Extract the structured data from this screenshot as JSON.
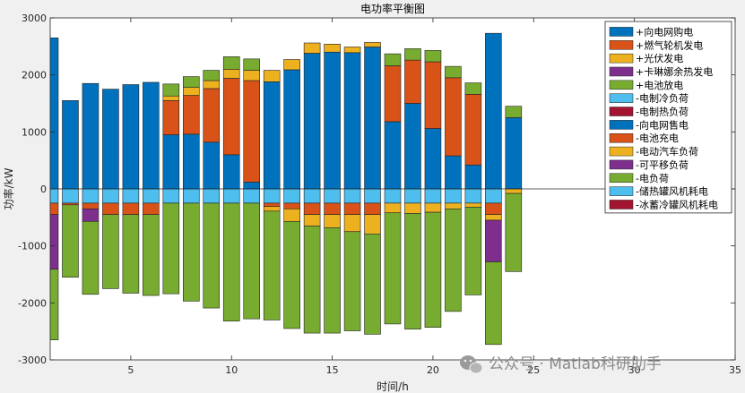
{
  "chart_data": {
    "type": "bar",
    "title": "电功率平衡图",
    "xlabel": "时间/h",
    "ylabel": "功率/kW",
    "xlim": [
      1,
      35
    ],
    "ylim": [
      -3000,
      3000
    ],
    "xticks": [
      5,
      10,
      15,
      20,
      25,
      30,
      35
    ],
    "yticks": [
      -3000,
      -2000,
      -1000,
      0,
      1000,
      2000,
      3000
    ],
    "grid": false,
    "stacked": true,
    "legend_position": "top-right",
    "x": [
      1,
      2,
      3,
      4,
      5,
      6,
      7,
      8,
      9,
      10,
      11,
      12,
      13,
      14,
      15,
      16,
      17,
      18,
      19,
      20,
      21,
      22,
      23,
      24
    ],
    "series": [
      {
        "name": "+向电网购电",
        "color": "#0072bd",
        "values": [
          2650,
          1550,
          1850,
          1750,
          1830,
          1870,
          950,
          960,
          820,
          600,
          120,
          1880,
          2090,
          2380,
          2400,
          2390,
          2490,
          1180,
          1500,
          1060,
          580,
          420,
          2730,
          1250
        ]
      },
      {
        "name": "+燃气轮机发电",
        "color": "#d95319",
        "values": [
          0,
          0,
          0,
          0,
          0,
          0,
          600,
          680,
          940,
          1340,
          1780,
          0,
          0,
          0,
          0,
          0,
          0,
          980,
          760,
          1170,
          1370,
          1240,
          0,
          0
        ]
      },
      {
        "name": "+光伏发电",
        "color": "#edb120",
        "values": [
          0,
          0,
          0,
          0,
          0,
          0,
          80,
          140,
          140,
          160,
          180,
          200,
          180,
          180,
          140,
          100,
          80,
          0,
          0,
          0,
          0,
          0,
          0,
          0
        ]
      },
      {
        "name": "+卡琳娜余热发电",
        "color": "#7e2f8e",
        "values": [
          0,
          0,
          0,
          0,
          0,
          0,
          0,
          0,
          0,
          0,
          0,
          0,
          0,
          0,
          0,
          0,
          0,
          0,
          0,
          0,
          0,
          0,
          0,
          0
        ]
      },
      {
        "name": "+电池放电",
        "color": "#77ac30",
        "values": [
          0,
          0,
          0,
          0,
          0,
          0,
          210,
          190,
          180,
          220,
          200,
          0,
          0,
          0,
          0,
          0,
          0,
          210,
          200,
          200,
          200,
          200,
          0,
          200
        ]
      },
      {
        "name": "-电制冷负荷",
        "color": "#4dbeee",
        "values": [
          -250,
          -250,
          -250,
          -250,
          -250,
          -250,
          -250,
          -250,
          -250,
          -250,
          -250,
          -250,
          -250,
          -250,
          -250,
          -250,
          -250,
          -250,
          -250,
          -250,
          -250,
          -250,
          -250,
          0
        ]
      },
      {
        "name": "-电制热负荷",
        "color": "#a2142f",
        "values": [
          0,
          0,
          0,
          0,
          0,
          0,
          0,
          0,
          0,
          0,
          0,
          0,
          0,
          0,
          0,
          0,
          0,
          0,
          0,
          0,
          0,
          0,
          0,
          0
        ]
      },
      {
        "name": "-向电网售电",
        "color": "#0072bd",
        "values": [
          0,
          0,
          0,
          0,
          0,
          0,
          0,
          0,
          0,
          0,
          0,
          0,
          0,
          0,
          0,
          0,
          0,
          0,
          0,
          0,
          0,
          0,
          0,
          0
        ]
      },
      {
        "name": "-电池充电",
        "color": "#d95319",
        "values": [
          -200,
          -30,
          -100,
          -200,
          -200,
          -200,
          0,
          0,
          0,
          0,
          0,
          -60,
          -100,
          -200,
          -200,
          -200,
          -200,
          0,
          0,
          0,
          0,
          0,
          -200,
          0
        ]
      },
      {
        "name": "-电动汽车负荷",
        "color": "#edb120",
        "values": [
          0,
          0,
          0,
          0,
          0,
          0,
          0,
          0,
          0,
          0,
          0,
          -80,
          -220,
          -200,
          -230,
          -300,
          -340,
          -170,
          -180,
          -160,
          -100,
          -70,
          -100,
          -80
        ]
      },
      {
        "name": "-可平移负荷",
        "color": "#7e2f8e",
        "values": [
          -960,
          0,
          -220,
          0,
          0,
          0,
          0,
          0,
          0,
          0,
          0,
          0,
          0,
          0,
          0,
          0,
          0,
          0,
          0,
          0,
          0,
          0,
          -730,
          0
        ]
      },
      {
        "name": "-电负荷",
        "color": "#77ac30",
        "values": [
          -1240,
          -1270,
          -1280,
          -1300,
          -1380,
          -1420,
          -1590,
          -1720,
          -1840,
          -2070,
          -2030,
          -1910,
          -1880,
          -1880,
          -1850,
          -1740,
          -1760,
          -1950,
          -2030,
          -2020,
          -1800,
          -1540,
          -1450,
          -1370
        ]
      },
      {
        "name": "-储热罐风机耗电",
        "color": "#4dbeee",
        "values": [
          0,
          0,
          0,
          0,
          0,
          0,
          0,
          0,
          0,
          0,
          0,
          0,
          0,
          0,
          0,
          0,
          0,
          0,
          0,
          0,
          0,
          0,
          0,
          0
        ]
      },
      {
        "name": "-冰蓄冷罐风机耗电",
        "color": "#a2142f",
        "values": [
          0,
          0,
          0,
          0,
          0,
          0,
          0,
          0,
          0,
          0,
          0,
          0,
          0,
          0,
          0,
          0,
          0,
          0,
          0,
          0,
          0,
          0,
          0,
          0
        ]
      }
    ]
  },
  "watermark": {
    "icon": "wechat-icon",
    "text": "公众号 · Matlab科研助手"
  }
}
